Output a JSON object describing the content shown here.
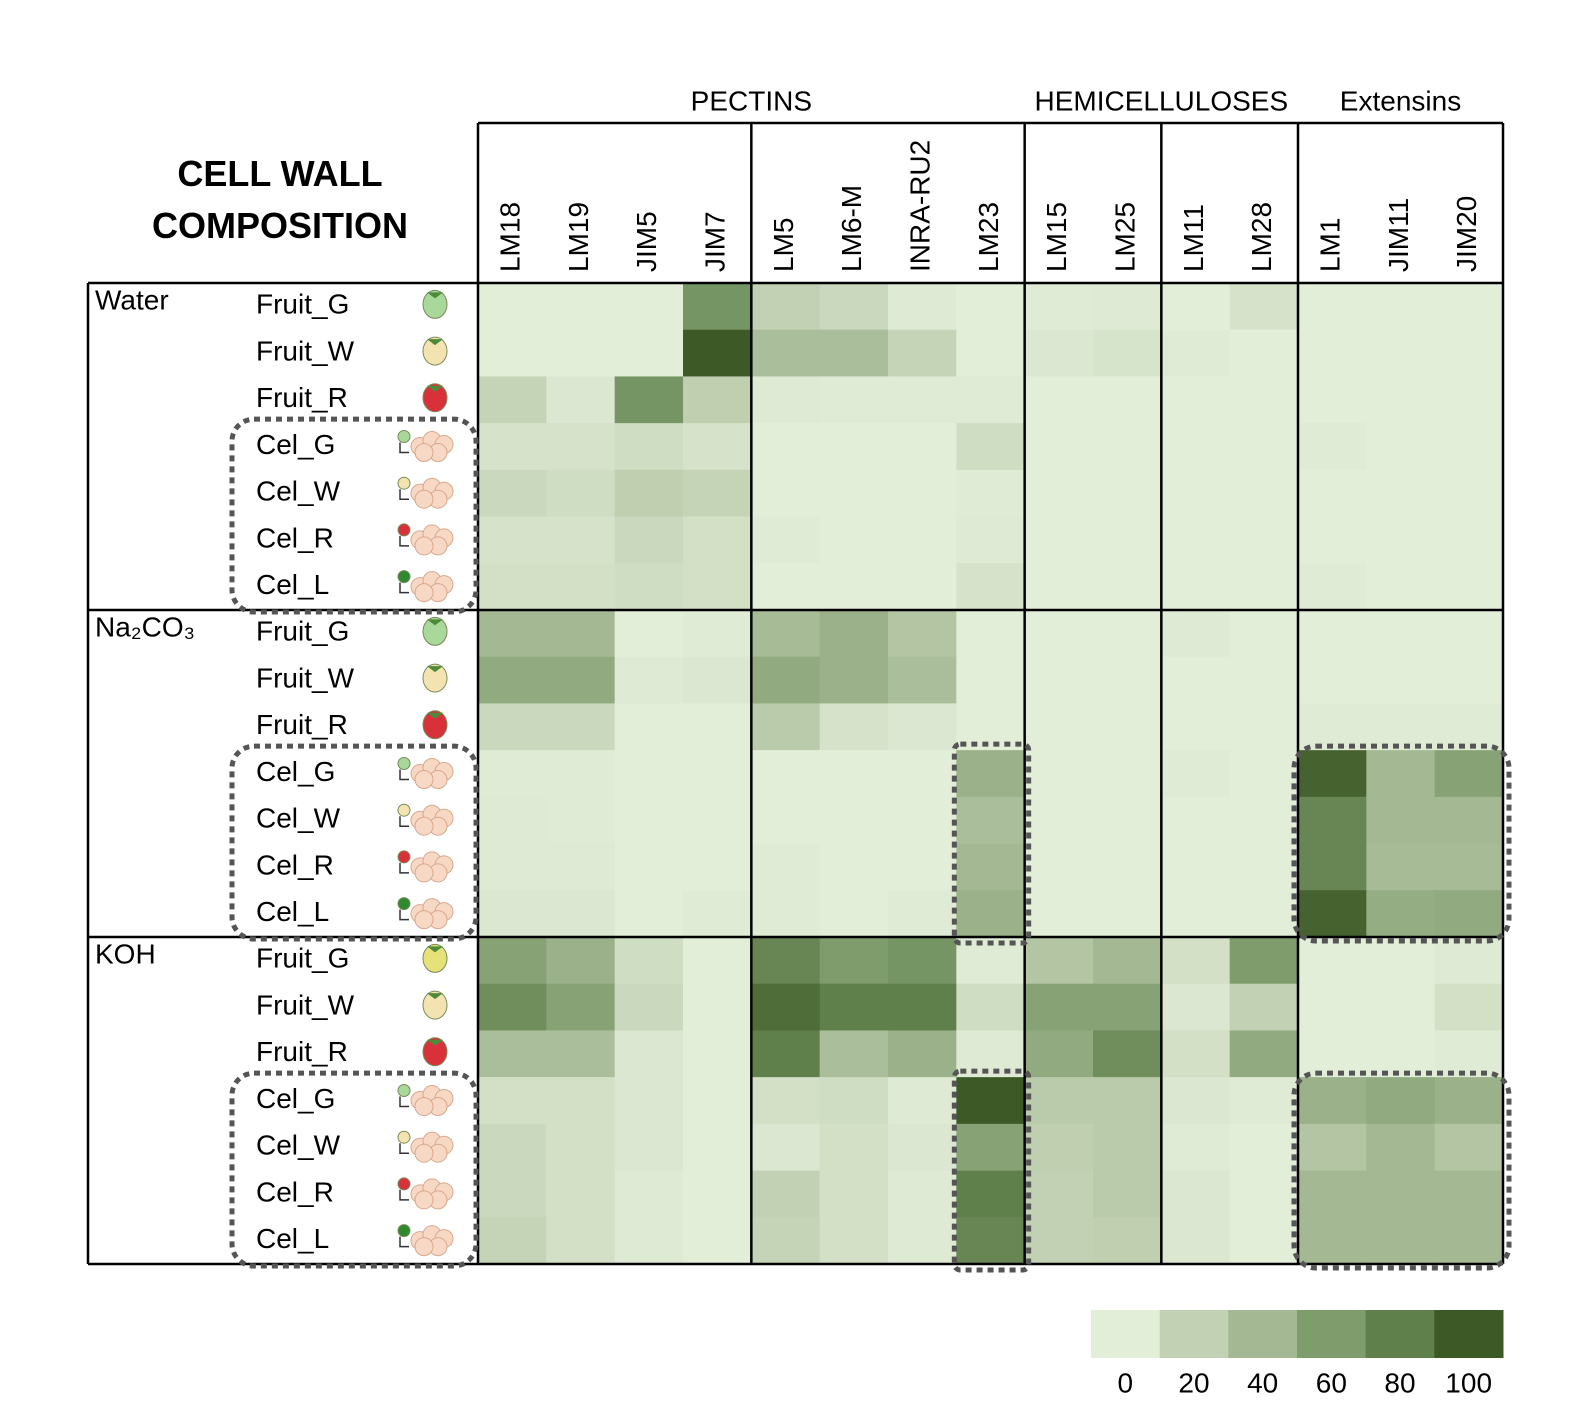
{
  "chart_data": {
    "type": "heatmap",
    "title": "CELL WALL COMPOSITION",
    "column_groups": [
      {
        "name": "PECTINS",
        "subgroups": [
          [
            "LM18",
            "LM19",
            "JIM5",
            "JIM7"
          ],
          [
            "LM5",
            "LM6-M",
            "INRA-RU2",
            "LM23"
          ]
        ]
      },
      {
        "name": "HEMICELLULOSES",
        "subgroups": [
          [
            "LM15",
            "LM25"
          ],
          [
            "LM11",
            "LM28"
          ]
        ]
      },
      {
        "name": "Extensins",
        "subgroups": [
          [
            "LM1",
            "JIM11",
            "JIM20"
          ]
        ]
      }
    ],
    "row_groups": [
      {
        "name": "Water",
        "rows": [
          {
            "name": "Fruit_G",
            "values": [
              0,
              0,
              0,
              65,
              20,
              15,
              3,
              0,
              2,
              3,
              0,
              8,
              0,
              0,
              0
            ]
          },
          {
            "name": "Fruit_W",
            "values": [
              0,
              0,
              0,
              100,
              35,
              35,
              18,
              0,
              5,
              7,
              2,
              0,
              0,
              0,
              0
            ]
          },
          {
            "name": "Fruit_R",
            "values": [
              18,
              5,
              65,
              22,
              3,
              2,
              2,
              2,
              0,
              0,
              0,
              0,
              0,
              0,
              0
            ]
          },
          {
            "name": "Cel_G",
            "values": [
              8,
              8,
              12,
              8,
              0,
              0,
              0,
              12,
              0,
              0,
              0,
              0,
              2,
              0,
              0
            ]
          },
          {
            "name": "Cel_W",
            "values": [
              15,
              12,
              22,
              18,
              0,
              0,
              0,
              2,
              0,
              0,
              0,
              0,
              0,
              0,
              0
            ]
          },
          {
            "name": "Cel_R",
            "values": [
              8,
              8,
              15,
              10,
              2,
              0,
              0,
              3,
              0,
              0,
              0,
              0,
              0,
              0,
              0
            ]
          },
          {
            "name": "Cel_L",
            "values": [
              10,
              10,
              12,
              10,
              0,
              0,
              0,
              8,
              0,
              0,
              0,
              0,
              2,
              0,
              0
            ]
          }
        ]
      },
      {
        "name": "Na₂CO₃",
        "rows": [
          {
            "name": "Fruit_G",
            "values": [
              40,
              40,
              0,
              2,
              38,
              45,
              30,
              0,
              0,
              0,
              3,
              0,
              0,
              0,
              0
            ]
          },
          {
            "name": "Fruit_W",
            "values": [
              50,
              50,
              3,
              5,
              50,
              45,
              35,
              0,
              0,
              0,
              0,
              0,
              0,
              0,
              0
            ]
          },
          {
            "name": "Fruit_R",
            "values": [
              15,
              15,
              0,
              0,
              25,
              8,
              5,
              0,
              0,
              0,
              0,
              0,
              2,
              2,
              2
            ]
          },
          {
            "name": "Cel_G",
            "values": [
              2,
              2,
              0,
              0,
              0,
              0,
              0,
              45,
              0,
              0,
              2,
              0,
              95,
              40,
              55
            ]
          },
          {
            "name": "Cel_W",
            "values": [
              3,
              2,
              0,
              0,
              0,
              0,
              0,
              35,
              0,
              0,
              0,
              0,
              75,
              40,
              40
            ]
          },
          {
            "name": "Cel_R",
            "values": [
              3,
              3,
              0,
              0,
              2,
              0,
              0,
              40,
              0,
              0,
              0,
              0,
              75,
              38,
              38
            ]
          },
          {
            "name": "Cel_L",
            "values": [
              5,
              5,
              0,
              2,
              2,
              0,
              2,
              45,
              0,
              0,
              0,
              0,
              95,
              48,
              50
            ]
          }
        ]
      },
      {
        "name": "KOH",
        "rows": [
          {
            "name": "Fruit_G",
            "values": [
              55,
              45,
              12,
              0,
              75,
              60,
              65,
              2,
              30,
              40,
              10,
              60,
              0,
              0,
              3
            ]
          },
          {
            "name": "Fruit_W",
            "values": [
              70,
              55,
              15,
              0,
              90,
              80,
              80,
              12,
              55,
              55,
              5,
              20,
              0,
              0,
              10
            ]
          },
          {
            "name": "Fruit_R",
            "values": [
              35,
              35,
              5,
              0,
              80,
              35,
              45,
              3,
              50,
              70,
              10,
              50,
              0,
              0,
              2
            ]
          },
          {
            "name": "Cel_G",
            "values": [
              10,
              10,
              5,
              0,
              10,
              12,
              3,
              100,
              25,
              25,
              5,
              2,
              45,
              50,
              45
            ]
          },
          {
            "name": "Cel_W",
            "values": [
              15,
              10,
              5,
              0,
              5,
              10,
              5,
              55,
              22,
              25,
              2,
              0,
              30,
              40,
              30
            ]
          },
          {
            "name": "Cel_R",
            "values": [
              15,
              10,
              3,
              0,
              20,
              10,
              3,
              80,
              20,
              25,
              5,
              0,
              40,
              40,
              40
            ]
          },
          {
            "name": "Cel_L",
            "values": [
              18,
              10,
              3,
              0,
              18,
              10,
              3,
              75,
              20,
              22,
              5,
              0,
              40,
              40,
              40
            ]
          }
        ]
      }
    ],
    "colorbar": {
      "ticks": [
        0,
        20,
        40,
        60,
        80,
        100
      ],
      "colors": [
        "#e3eed9",
        "#c2d1b3",
        "#a3b893",
        "#7e9c6c",
        "#5f7f4b",
        "#3d5a26"
      ]
    }
  }
}
